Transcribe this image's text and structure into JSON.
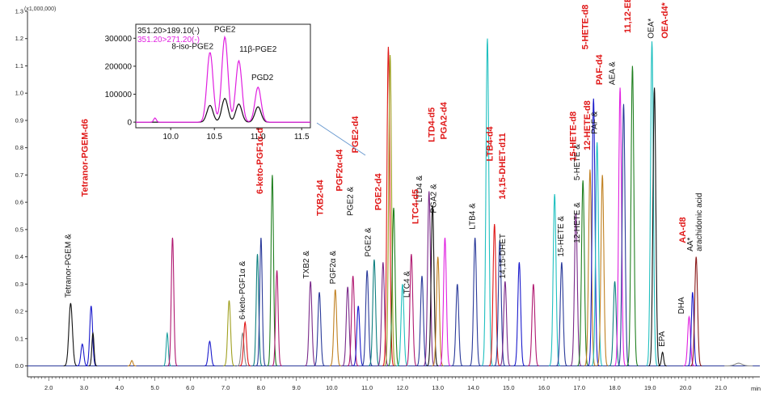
{
  "chart_data": {
    "type": "line",
    "title": "",
    "scale_label": "(x1,000,000)",
    "x_unit_label": "min",
    "xlabel": "",
    "ylabel": "",
    "xlim": [
      1.4,
      22.1
    ],
    "ylim": [
      -0.04,
      1.3
    ],
    "x_ticks": [
      "2.0",
      "3.0",
      "4.0",
      "5.0",
      "6.0",
      "7.0",
      "8.0",
      "9.0",
      "10.0",
      "11.0",
      "12.0",
      "13.0",
      "14.0",
      "15.0",
      "16.0",
      "17.0",
      "18.0",
      "19.0",
      "20.0",
      "21.0"
    ],
    "y_ticks": [
      "0.0",
      "0.1",
      "0.2",
      "0.3",
      "0.4",
      "0.5",
      "0.6",
      "0.7",
      "0.8",
      "0.9",
      "1.0",
      "1.1",
      "1.2",
      "1.3"
    ],
    "peaks": [
      {
        "x": 2.62,
        "y": 0.23,
        "w": 0.05,
        "color": "#111111"
      },
      {
        "x": 2.95,
        "y": 0.08,
        "w": 0.04,
        "color": "#1a1acc"
      },
      {
        "x": 3.2,
        "y": 0.22,
        "w": 0.04,
        "color": "#1a1acc"
      },
      {
        "x": 3.25,
        "y": 0.12,
        "w": 0.03,
        "color": "#111111"
      },
      {
        "x": 4.35,
        "y": 0.02,
        "w": 0.03,
        "color": "#c08020"
      },
      {
        "x": 5.35,
        "y": 0.12,
        "w": 0.03,
        "color": "#20a0a0"
      },
      {
        "x": 5.5,
        "y": 0.47,
        "w": 0.035,
        "color": "#b01870"
      },
      {
        "x": 6.55,
        "y": 0.09,
        "w": 0.04,
        "color": "#1a1acc"
      },
      {
        "x": 7.1,
        "y": 0.24,
        "w": 0.04,
        "color": "#a0a020"
      },
      {
        "x": 7.48,
        "y": 0.12,
        "w": 0.04,
        "color": "#888888"
      },
      {
        "x": 7.55,
        "y": 0.16,
        "w": 0.04,
        "color": "#e01818"
      },
      {
        "x": 7.9,
        "y": 0.41,
        "w": 0.035,
        "color": "#108080"
      },
      {
        "x": 8.0,
        "y": 0.47,
        "w": 0.035,
        "color": "#2a3a9a"
      },
      {
        "x": 8.32,
        "y": 0.7,
        "w": 0.035,
        "color": "#208020"
      },
      {
        "x": 8.45,
        "y": 0.35,
        "w": 0.035,
        "color": "#b01870"
      },
      {
        "x": 9.4,
        "y": 0.31,
        "w": 0.04,
        "color": "#7a2a8a"
      },
      {
        "x": 9.65,
        "y": 0.27,
        "w": 0.04,
        "color": "#2a3a9a"
      },
      {
        "x": 10.1,
        "y": 0.28,
        "w": 0.04,
        "color": "#c08020"
      },
      {
        "x": 10.45,
        "y": 0.29,
        "w": 0.04,
        "color": "#7a2a8a"
      },
      {
        "x": 10.6,
        "y": 0.33,
        "w": 0.04,
        "color": "#b01870"
      },
      {
        "x": 10.75,
        "y": 0.22,
        "w": 0.04,
        "color": "#1a1acc"
      },
      {
        "x": 11.0,
        "y": 0.35,
        "w": 0.04,
        "color": "#2a3a9a"
      },
      {
        "x": 11.2,
        "y": 0.39,
        "w": 0.04,
        "color": "#108080"
      },
      {
        "x": 11.45,
        "y": 0.38,
        "w": 0.04,
        "color": "#7a2a8a"
      },
      {
        "x": 11.6,
        "y": 1.17,
        "w": 0.04,
        "color": "#e01818"
      },
      {
        "x": 11.65,
        "y": 1.14,
        "w": 0.04,
        "color": "#a0a020"
      },
      {
        "x": 11.75,
        "y": 0.58,
        "w": 0.04,
        "color": "#208020"
      },
      {
        "x": 12.0,
        "y": 0.3,
        "w": 0.04,
        "color": "#20c0c0"
      },
      {
        "x": 12.25,
        "y": 0.41,
        "w": 0.04,
        "color": "#b01870"
      },
      {
        "x": 12.55,
        "y": 0.33,
        "w": 0.04,
        "color": "#2a3a9a"
      },
      {
        "x": 12.75,
        "y": 0.64,
        "w": 0.04,
        "color": "#7a2a8a"
      },
      {
        "x": 12.85,
        "y": 0.59,
        "w": 0.04,
        "color": "#111111"
      },
      {
        "x": 13.0,
        "y": 0.4,
        "w": 0.04,
        "color": "#c08020"
      },
      {
        "x": 13.2,
        "y": 0.47,
        "w": 0.04,
        "color": "#e020e0"
      },
      {
        "x": 13.55,
        "y": 0.3,
        "w": 0.04,
        "color": "#2a3a9a"
      },
      {
        "x": 14.05,
        "y": 0.47,
        "w": 0.04,
        "color": "#2a3a9a"
      },
      {
        "x": 14.4,
        "y": 1.2,
        "w": 0.04,
        "color": "#20c0c0"
      },
      {
        "x": 14.6,
        "y": 0.52,
        "w": 0.04,
        "color": "#e01818"
      },
      {
        "x": 14.75,
        "y": 0.46,
        "w": 0.04,
        "color": "#2a3a9a"
      },
      {
        "x": 14.9,
        "y": 0.31,
        "w": 0.04,
        "color": "#7a2a8a"
      },
      {
        "x": 15.3,
        "y": 0.38,
        "w": 0.04,
        "color": "#1a1acc"
      },
      {
        "x": 15.7,
        "y": 0.3,
        "w": 0.04,
        "color": "#b01870"
      },
      {
        "x": 16.3,
        "y": 0.63,
        "w": 0.04,
        "color": "#20c0c0"
      },
      {
        "x": 16.5,
        "y": 0.38,
        "w": 0.04,
        "color": "#2a3a9a"
      },
      {
        "x": 16.9,
        "y": 0.56,
        "w": 0.04,
        "color": "#7a2a8a"
      },
      {
        "x": 17.1,
        "y": 0.68,
        "w": 0.04,
        "color": "#208020"
      },
      {
        "x": 17.3,
        "y": 0.72,
        "w": 0.04,
        "color": "#c08020"
      },
      {
        "x": 17.4,
        "y": 0.98,
        "w": 0.04,
        "color": "#1a1acc"
      },
      {
        "x": 17.5,
        "y": 0.82,
        "w": 0.04,
        "color": "#20c0c0"
      },
      {
        "x": 17.65,
        "y": 0.7,
        "w": 0.04,
        "color": "#c08020"
      },
      {
        "x": 18.0,
        "y": 0.31,
        "w": 0.04,
        "color": "#108080"
      },
      {
        "x": 18.15,
        "y": 1.02,
        "w": 0.04,
        "color": "#e020e0"
      },
      {
        "x": 18.25,
        "y": 0.96,
        "w": 0.04,
        "color": "#2a3a9a"
      },
      {
        "x": 18.5,
        "y": 1.1,
        "w": 0.04,
        "color": "#208020"
      },
      {
        "x": 19.05,
        "y": 1.19,
        "w": 0.04,
        "color": "#20c0c0"
      },
      {
        "x": 19.12,
        "y": 1.02,
        "w": 0.04,
        "color": "#111111"
      },
      {
        "x": 19.35,
        "y": 0.05,
        "w": 0.03,
        "color": "#111111"
      },
      {
        "x": 20.1,
        "y": 0.18,
        "w": 0.04,
        "color": "#e020e0"
      },
      {
        "x": 20.2,
        "y": 0.27,
        "w": 0.035,
        "color": "#1a1acc"
      },
      {
        "x": 20.3,
        "y": 0.4,
        "w": 0.04,
        "color": "#8a1a1a"
      },
      {
        "x": 21.5,
        "y": 0.01,
        "w": 0.1,
        "color": "#888888"
      }
    ],
    "annotations_black": [
      {
        "text": "Tetranor-PGEM &",
        "x": 2.62,
        "y": 0.25
      },
      {
        "text": "6-keto-PGF1α &",
        "x": 7.55,
        "y": 0.17
      },
      {
        "text": "TXB2 &",
        "x": 9.35,
        "y": 0.32
      },
      {
        "text": "PGF2α &",
        "x": 10.1,
        "y": 0.3
      },
      {
        "text": "PGE2 &",
        "x": 10.6,
        "y": 0.55
      },
      {
        "text": "PGE2 &",
        "x": 11.1,
        "y": 0.4
      },
      {
        "text": "LTC4 &",
        "x": 12.2,
        "y": 0.25
      },
      {
        "text": "LTD4 &",
        "x": 12.55,
        "y": 0.6
      },
      {
        "text": "PGA2 &",
        "x": 12.95,
        "y": 0.56
      },
      {
        "text": "LTB4 &",
        "x": 14.05,
        "y": 0.5
      },
      {
        "text": "14,15-DHET",
        "x": 14.9,
        "y": 0.32
      },
      {
        "text": "15-HETE &",
        "x": 16.55,
        "y": 0.4
      },
      {
        "text": "12-HETE &",
        "x": 17.0,
        "y": 0.45
      },
      {
        "text": "5-HETE &",
        "x": 17.0,
        "y": 0.68
      },
      {
        "text": "PAF &",
        "x": 17.5,
        "y": 0.85
      },
      {
        "text": "AEA &",
        "x": 18.0,
        "y": 1.03
      },
      {
        "text": "OEA*",
        "x": 19.1,
        "y": 1.2
      },
      {
        "text": "EPA",
        "x": 19.4,
        "y": 0.07
      },
      {
        "text": "DHA",
        "x": 19.95,
        "y": 0.19
      },
      {
        "text": "AA*",
        "x": 20.2,
        "y": 0.42
      },
      {
        "text": "arachidonic acid",
        "x": 20.45,
        "y": 0.42
      }
    ],
    "annotations_red": [
      {
        "text": "Tetranor-PGEM-d6",
        "x": 3.1,
        "y": 0.62
      },
      {
        "text": "6-keto-PGF1α-d4",
        "x": 8.05,
        "y": 0.63
      },
      {
        "text": "TXB2-d4",
        "x": 9.75,
        "y": 0.55
      },
      {
        "text": "PGF2α-d4",
        "x": 10.3,
        "y": 0.64
      },
      {
        "text": "PGE2-d4",
        "x": 10.75,
        "y": 0.78
      },
      {
        "text": "PGE2-d4",
        "x": 11.4,
        "y": 0.57
      },
      {
        "text": "LTC4-d5",
        "x": 12.45,
        "y": 0.52
      },
      {
        "text": "LTD4-d5",
        "x": 12.9,
        "y": 0.82
      },
      {
        "text": "PGA2-d4",
        "x": 13.25,
        "y": 0.83
      },
      {
        "text": "LTB4-d4",
        "x": 14.55,
        "y": 0.75
      },
      {
        "text": "14,15-DHET-d11",
        "x": 14.9,
        "y": 0.61
      },
      {
        "text": "15-HETE-d8",
        "x": 16.9,
        "y": 0.75
      },
      {
        "text": "12-HETE-d8",
        "x": 17.3,
        "y": 0.79
      },
      {
        "text": "5-HETE-d8",
        "x": 17.25,
        "y": 1.16
      },
      {
        "text": "PAF-d4",
        "x": 17.65,
        "y": 1.03
      },
      {
        "text": "11,12-EET-d11",
        "x": 18.45,
        "y": 1.22
      },
      {
        "text": "OEA-d4*",
        "x": 19.5,
        "y": 1.2
      },
      {
        "text": "AA-d8",
        "x": 20.0,
        "y": 0.45
      }
    ],
    "inset": {
      "legend": [
        {
          "label": "351.20>189.10(-)",
          "color": "#111111"
        },
        {
          "label": "351.20>271.20(-)",
          "color": "#e020e0"
        }
      ],
      "xlim": [
        9.6,
        11.6
      ],
      "ylim": [
        -20000,
        350000
      ],
      "x_ticks": [
        "10.0",
        "10.5",
        "11.0",
        "11.5"
      ],
      "y_ticks": [
        "0",
        "100000",
        "200000",
        "300000"
      ],
      "peaks_magenta": [
        {
          "x": 9.82,
          "y": 15000,
          "w": 0.015
        },
        {
          "x": 10.45,
          "y": 250000,
          "w": 0.035
        },
        {
          "x": 10.62,
          "y": 305000,
          "w": 0.035
        },
        {
          "x": 10.78,
          "y": 220000,
          "w": 0.035
        },
        {
          "x": 11.0,
          "y": 125000,
          "w": 0.035
        }
      ],
      "peaks_black": [
        {
          "x": 10.45,
          "y": 60000,
          "w": 0.035
        },
        {
          "x": 10.62,
          "y": 85000,
          "w": 0.035
        },
        {
          "x": 10.78,
          "y": 65000,
          "w": 0.035
        },
        {
          "x": 11.0,
          "y": 55000,
          "w": 0.035
        }
      ],
      "labels": [
        {
          "text": "PGE2",
          "x": 10.62,
          "y": 322000
        },
        {
          "text": "8-iso-PGE2",
          "x": 10.25,
          "y": 262000
        },
        {
          "text": "11β-PGE2",
          "x": 11.0,
          "y": 252000
        },
        {
          "text": "PGD2",
          "x": 11.05,
          "y": 150000
        }
      ]
    }
  }
}
